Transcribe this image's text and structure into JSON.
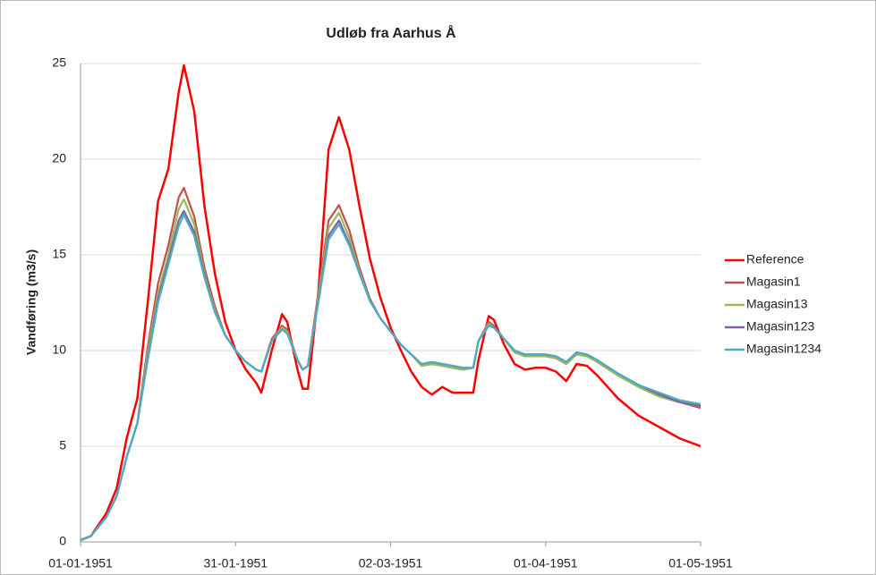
{
  "chart_data": {
    "type": "line",
    "title": "Udløb fra Aarhus Å",
    "y_label": "Vandføring (m3/s)",
    "x": [
      "01-01-1951",
      "03-01-1951",
      "06-01-1951",
      "08-01-1951",
      "10-01-1951",
      "12-01-1951",
      "14-01-1951",
      "16-01-1951",
      "18-01-1951",
      "20-01-1951",
      "21-01-1951",
      "23-01-1951",
      "25-01-1951",
      "27-01-1951",
      "29-01-1951",
      "31-01-1951",
      "02-02-1951",
      "04-02-1951",
      "05-02-1951",
      "07-02-1951",
      "09-02-1951",
      "10-02-1951",
      "12-02-1951",
      "13-02-1951",
      "14-02-1951",
      "16-02-1951",
      "18-02-1951",
      "20-02-1951",
      "22-02-1951",
      "24-02-1951",
      "26-02-1951",
      "28-02-1951",
      "02-03-1951",
      "04-03-1951",
      "06-03-1951",
      "08-03-1951",
      "10-03-1951",
      "12-03-1951",
      "14-03-1951",
      "16-03-1951",
      "18-03-1951",
      "19-03-1951",
      "21-03-1951",
      "22-03-1951",
      "24-03-1951",
      "26-03-1951",
      "28-03-1951",
      "30-03-1951",
      "01-04-1951",
      "03-04-1951",
      "05-04-1951",
      "07-04-1951",
      "09-04-1951",
      "11-04-1951",
      "15-04-1951",
      "19-04-1951",
      "23-04-1951",
      "27-04-1951",
      "01-05-1951"
    ],
    "xlim": [
      "01-01-1951",
      "01-05-1951"
    ],
    "xticks": [
      "01-01-1951",
      "31-01-1951",
      "02-03-1951",
      "01-04-1951",
      "01-05-1951"
    ],
    "ylim": [
      0,
      25
    ],
    "yticks": [
      0,
      5,
      10,
      15,
      20,
      25
    ],
    "grid": true,
    "legend": "right",
    "series": [
      {
        "name": "Reference",
        "color": "#ff0000",
        "values": [
          0.1,
          0.3,
          1.5,
          2.8,
          5.5,
          7.5,
          12.5,
          17.8,
          19.5,
          23.5,
          24.9,
          22.5,
          17.5,
          14,
          11.5,
          10,
          9,
          8.3,
          7.8,
          10,
          11.9,
          11.5,
          9,
          8,
          8,
          13,
          20.5,
          22.2,
          20.5,
          17.5,
          14.8,
          12.8,
          11.2,
          10,
          8.9,
          8.1,
          7.7,
          8.1,
          7.8,
          7.8,
          7.8,
          9.5,
          11.8,
          11.6,
          10.3,
          9.3,
          9,
          9.1,
          9.1,
          8.9,
          8.4,
          9.3,
          9.2,
          8.7,
          7.5,
          6.6,
          6,
          5.4,
          5
        ]
      },
      {
        "name": "Magasin1",
        "color": "#c0504d",
        "values": [
          0.1,
          0.3,
          1.3,
          2.4,
          4.5,
          6.2,
          10.2,
          13.5,
          15.5,
          18,
          18.5,
          17,
          14.3,
          12.3,
          10.8,
          10,
          9.4,
          9,
          8.9,
          10.6,
          11.3,
          11.1,
          9.5,
          9,
          9.2,
          13,
          16.8,
          17.6,
          16.3,
          14.3,
          12.7,
          11.7,
          11,
          10.3,
          9.8,
          9.2,
          9.3,
          9.2,
          9.1,
          9,
          9.1,
          10.5,
          11.5,
          11.3,
          10.6,
          9.9,
          9.7,
          9.7,
          9.7,
          9.6,
          9.3,
          9.8,
          9.7,
          9.4,
          8.7,
          8.1,
          7.6,
          7.3,
          7
        ]
      },
      {
        "name": "Magasin13",
        "color": "#9bbb59",
        "values": [
          0.1,
          0.3,
          1.3,
          2.4,
          4.5,
          6.2,
          9.9,
          13,
          15,
          17.4,
          17.9,
          16.6,
          14,
          12.1,
          10.8,
          10,
          9.4,
          9,
          8.9,
          10.5,
          11.2,
          11,
          9.5,
          9,
          9.2,
          12.8,
          16.4,
          17.2,
          15.9,
          14.1,
          12.6,
          11.7,
          11,
          10.3,
          9.8,
          9.2,
          9.3,
          9.2,
          9.1,
          9,
          9.1,
          10.5,
          11.4,
          11.2,
          10.6,
          9.9,
          9.7,
          9.7,
          9.7,
          9.6,
          9.3,
          9.8,
          9.7,
          9.4,
          8.7,
          8.1,
          7.6,
          7.3,
          7.1
        ]
      },
      {
        "name": "Magasin123",
        "color": "#8064a2",
        "values": [
          0.1,
          0.3,
          1.3,
          2.4,
          4.5,
          6.2,
          9.6,
          12.7,
          14.7,
          16.8,
          17.3,
          16.2,
          13.9,
          12,
          10.8,
          10,
          9.4,
          9,
          8.9,
          10.5,
          11.1,
          10.9,
          9.5,
          9,
          9.2,
          12.6,
          16,
          16.8,
          15.6,
          14,
          12.6,
          11.7,
          11,
          10.3,
          9.8,
          9.3,
          9.4,
          9.3,
          9.2,
          9.1,
          9.1,
          10.5,
          11.3,
          11.2,
          10.6,
          10,
          9.8,
          9.8,
          9.8,
          9.7,
          9.4,
          9.9,
          9.8,
          9.5,
          8.8,
          8.2,
          7.7,
          7.3,
          7.1
        ]
      },
      {
        "name": "Magasin1234",
        "color": "#4bacc6",
        "values": [
          0.1,
          0.3,
          1.3,
          2.4,
          4.5,
          6.2,
          9.5,
          12.5,
          14.5,
          16.5,
          17.1,
          16,
          13.8,
          12,
          10.8,
          10,
          9.4,
          9,
          8.9,
          10.5,
          11.1,
          10.9,
          9.5,
          9,
          9.2,
          12.5,
          15.8,
          16.6,
          15.5,
          14,
          12.6,
          11.7,
          11,
          10.3,
          9.8,
          9.3,
          9.4,
          9.3,
          9.2,
          9.1,
          9.1,
          10.5,
          11.3,
          11.2,
          10.6,
          10,
          9.8,
          9.8,
          9.8,
          9.7,
          9.4,
          9.9,
          9.8,
          9.5,
          8.8,
          8.2,
          7.8,
          7.4,
          7.2
        ]
      }
    ]
  }
}
